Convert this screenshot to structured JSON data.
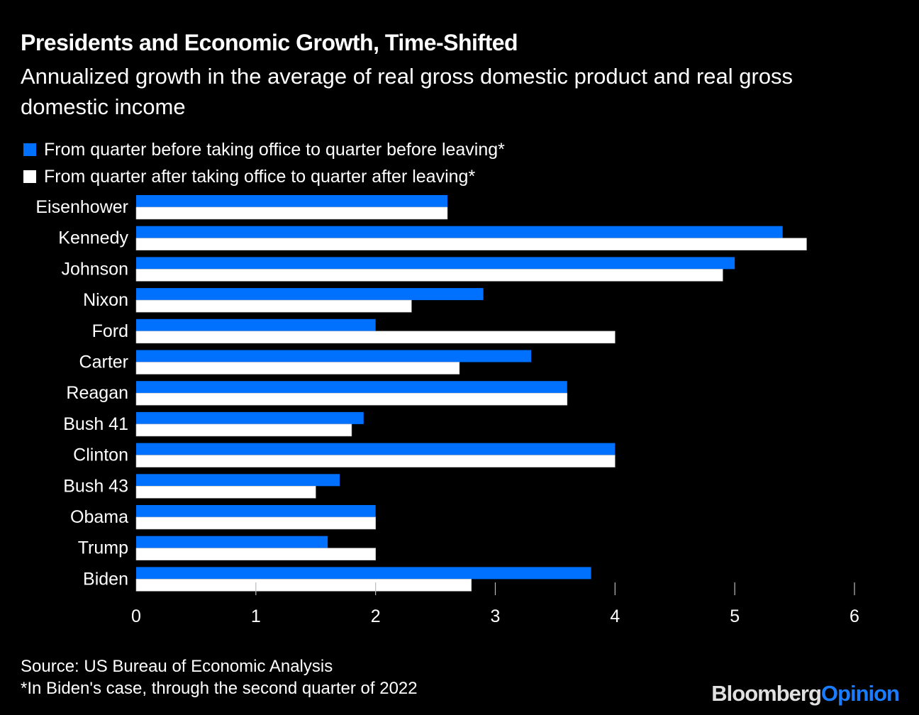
{
  "header": {
    "title": "Presidents and Economic Growth, Time-Shifted",
    "subtitle": "Annualized growth in the average of real gross domestic product and real gross domestic income"
  },
  "colors": {
    "background": "#000000",
    "series_before": "#0070ff",
    "series_after": "#ffffff",
    "text": "#ffffff"
  },
  "chart_data": {
    "type": "bar",
    "orientation": "horizontal",
    "title": "Presidents and Economic Growth, Time-Shifted",
    "subtitle": "Annualized growth in the average of real gross domestic product and real gross domestic income",
    "categories": [
      "Eisenhower",
      "Kennedy",
      "Johnson",
      "Nixon",
      "Ford",
      "Carter",
      "Reagan",
      "Bush 41",
      "Clinton",
      "Bush 43",
      "Obama",
      "Trump",
      "Biden"
    ],
    "series": [
      {
        "name": "From quarter before taking office to quarter before leaving*",
        "color": "#0070ff",
        "values": [
          2.6,
          5.4,
          5.0,
          2.9,
          2.0,
          3.3,
          3.6,
          1.9,
          4.0,
          1.7,
          2.0,
          1.6,
          3.8
        ]
      },
      {
        "name": "From quarter after taking office to quarter after leaving*",
        "color": "#ffffff",
        "values": [
          2.6,
          5.6,
          4.9,
          2.3,
          4.0,
          2.7,
          3.6,
          1.8,
          4.0,
          1.5,
          2.0,
          2.0,
          2.8
        ]
      }
    ],
    "xlabel": "",
    "ylabel": "",
    "xlim": [
      0,
      6
    ],
    "xticks": [
      0,
      1,
      2,
      3,
      4,
      5,
      6
    ],
    "grid": false,
    "legend_position": "top-left"
  },
  "footer": {
    "source": "Source: US Bureau of Economic Analysis",
    "note": "*In Biden's case, through the second quarter of 2022",
    "logo_part1": "Bloomberg",
    "logo_part2": "Opinion"
  }
}
